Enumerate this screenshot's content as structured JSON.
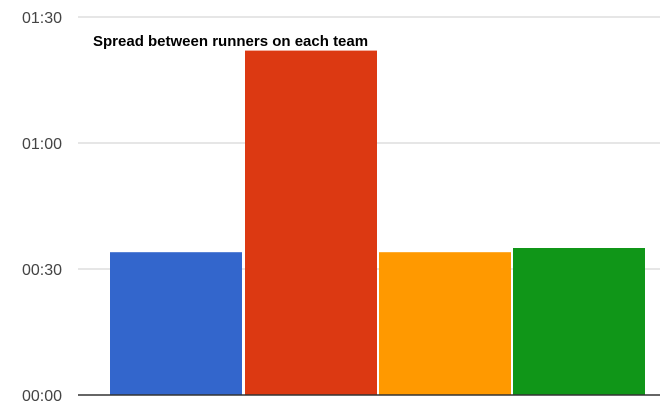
{
  "chart_data": {
    "type": "bar",
    "title": "Spread between runners on each team",
    "xlabel": "",
    "ylabel": "",
    "y_unit": "seconds",
    "ylim": [
      0,
      90
    ],
    "y_ticks": [
      0,
      30,
      60,
      90
    ],
    "y_tick_labels": [
      "00:00",
      "00:30",
      "01:00",
      "01:30"
    ],
    "grid": true,
    "legend": "none",
    "series": [
      {
        "color": "#3366cc",
        "values": [
          34
        ]
      },
      {
        "color": "#dc3912",
        "values": [
          82
        ]
      },
      {
        "color": "#ff9900",
        "values": [
          34
        ]
      },
      {
        "color": "#109618",
        "values": [
          35
        ]
      }
    ]
  }
}
